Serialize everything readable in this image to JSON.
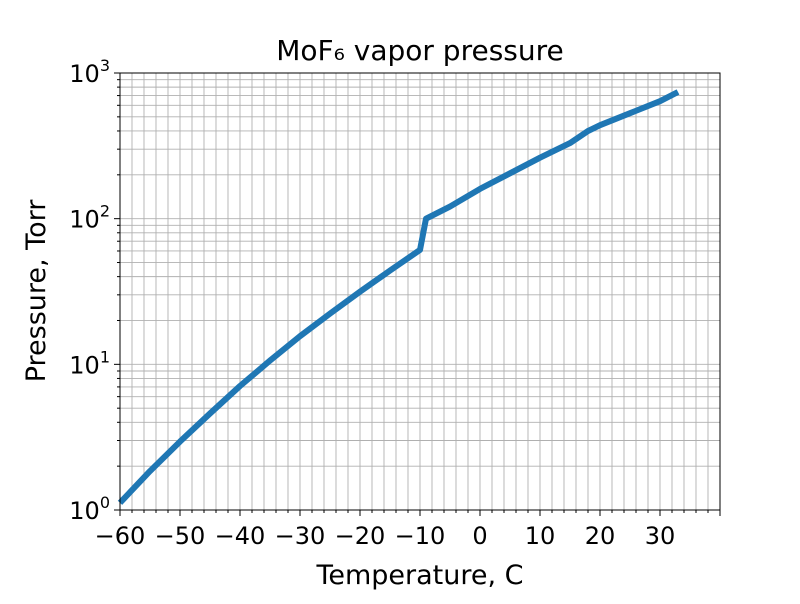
{
  "chart_data": {
    "type": "line",
    "title": "MoF₆ vapor pressure",
    "xlabel": "Temperature, C",
    "ylabel": "Pressure, Torr",
    "xlim": [
      -60,
      40
    ],
    "ylim": [
      1,
      1000
    ],
    "yscale": "log",
    "grid": "major and minor",
    "x_ticks": [
      -60,
      -50,
      -40,
      -30,
      -20,
      -10,
      0,
      10,
      20,
      30
    ],
    "x_tick_labels": [
      "−60",
      "−50",
      "−40",
      "−30",
      "−20",
      "−10",
      "0",
      "10",
      "20",
      "30"
    ],
    "y_ticks": [
      1,
      10,
      100,
      1000
    ],
    "y_tick_labels": [
      {
        "base": "10",
        "exp": "0"
      },
      {
        "base": "10",
        "exp": "1"
      },
      {
        "base": "10",
        "exp": "2"
      },
      {
        "base": "10",
        "exp": "3"
      }
    ],
    "line_color": "#1f77b4",
    "series": [
      {
        "x": [
          -60,
          -55,
          -50,
          -45,
          -40,
          -35,
          -30,
          -25,
          -20,
          -15,
          -10,
          -9,
          -5,
          0,
          5,
          10,
          15,
          18,
          20,
          25,
          30,
          33
        ],
        "y": [
          1.12,
          1.85,
          2.95,
          4.6,
          7.1,
          10.6,
          15.6,
          22.3,
          31.5,
          44,
          61,
          100,
          121,
          160,
          205,
          262,
          330,
          400,
          438,
          530,
          640,
          740
        ]
      }
    ]
  }
}
